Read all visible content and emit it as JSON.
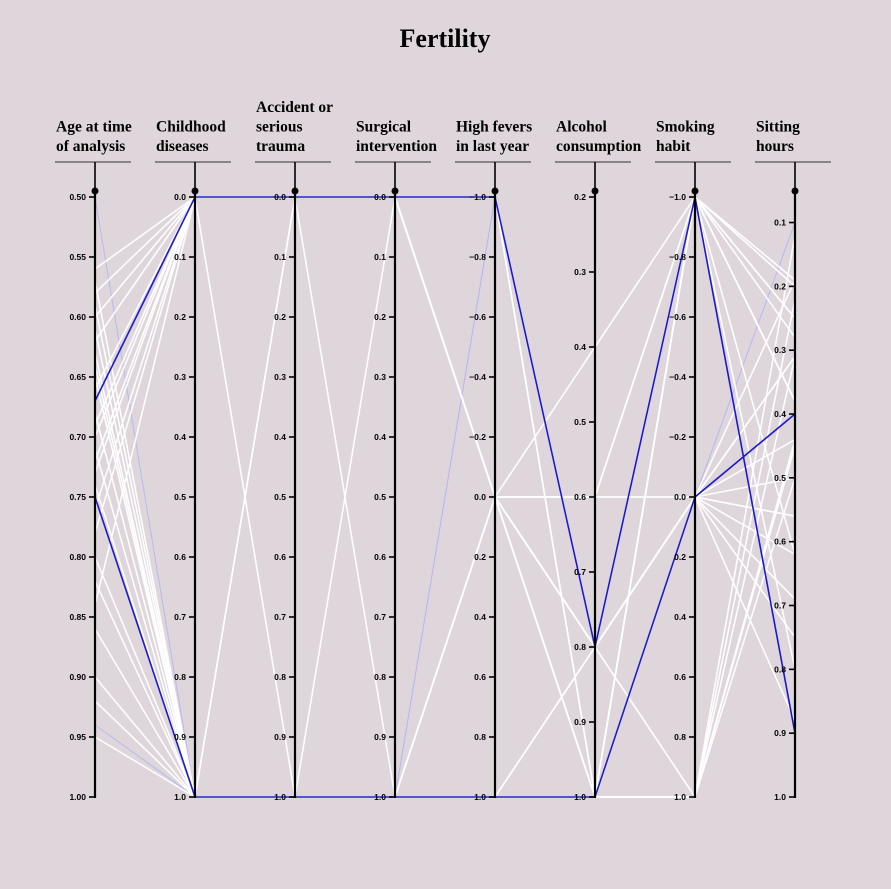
{
  "chart_data": {
    "type": "parallel-coordinates",
    "title": "Fertility",
    "axes": [
      {
        "key": "age",
        "label_lines": [
          "Age at time",
          "of analysis"
        ],
        "domain": [
          0.5,
          1.0
        ],
        "ticks": [
          0.5,
          0.55,
          0.6,
          0.65,
          0.7,
          0.75,
          0.8,
          0.85,
          0.9,
          0.95,
          1.0
        ],
        "tick_labels": [
          "0.50",
          "0.55",
          "0.60",
          "0.65",
          "0.70",
          "0.75",
          "0.80",
          "0.85",
          "0.90",
          "0.95",
          "1.00"
        ]
      },
      {
        "key": "childhood",
        "label_lines": [
          "Childhood",
          "diseases"
        ],
        "domain": [
          0,
          1
        ],
        "ticks": [
          0,
          0.1,
          0.2,
          0.3,
          0.4,
          0.5,
          0.6,
          0.7,
          0.8,
          0.9,
          1.0
        ],
        "tick_labels": [
          "0.0",
          "0.1",
          "0.2",
          "0.3",
          "0.4",
          "0.5",
          "0.6",
          "0.7",
          "0.8",
          "0.9",
          "1.0"
        ]
      },
      {
        "key": "accident",
        "label_lines": [
          "Accident or",
          "serious",
          "trauma"
        ],
        "domain": [
          0,
          1
        ],
        "ticks": [
          0,
          0.1,
          0.2,
          0.3,
          0.4,
          0.5,
          0.6,
          0.7,
          0.8,
          0.9,
          1.0
        ],
        "tick_labels": [
          "0.0",
          "0.1",
          "0.2",
          "0.3",
          "0.4",
          "0.5",
          "0.6",
          "0.7",
          "0.8",
          "0.9",
          "1.0"
        ]
      },
      {
        "key": "surgical",
        "label_lines": [
          "Surgical",
          "intervention"
        ],
        "domain": [
          0,
          1
        ],
        "ticks": [
          0,
          0.1,
          0.2,
          0.3,
          0.4,
          0.5,
          0.6,
          0.7,
          0.8,
          0.9,
          1.0
        ],
        "tick_labels": [
          "0.0",
          "0.1",
          "0.2",
          "0.3",
          "0.4",
          "0.5",
          "0.6",
          "0.7",
          "0.8",
          "0.9",
          "1.0"
        ]
      },
      {
        "key": "fevers",
        "label_lines": [
          "High fevers",
          "in last year"
        ],
        "domain": [
          -1,
          1
        ],
        "ticks": [
          -1,
          -0.8,
          -0.6,
          -0.4,
          -0.2,
          0,
          0.2,
          0.4,
          0.6,
          0.8,
          1.0
        ],
        "tick_labels": [
          "−1.0",
          "−0.8",
          "−0.6",
          "−0.4",
          "−0.2",
          "0.0",
          "0.2",
          "0.4",
          "0.6",
          "0.8",
          "1.0"
        ]
      },
      {
        "key": "alcohol",
        "label_lines": [
          "Alcohol",
          "consumption"
        ],
        "domain": [
          0.2,
          1.0
        ],
        "ticks": [
          0.2,
          0.3,
          0.4,
          0.5,
          0.6,
          0.7,
          0.8,
          0.9,
          1.0
        ],
        "tick_labels": [
          "0.2",
          "0.3",
          "0.4",
          "0.5",
          "0.6",
          "0.7",
          "0.8",
          "0.9",
          "1.0"
        ]
      },
      {
        "key": "smoking",
        "label_lines": [
          "Smoking",
          "habit"
        ],
        "domain": [
          -1,
          1
        ],
        "ticks": [
          -1,
          -0.8,
          -0.6,
          -0.4,
          -0.2,
          0,
          0.2,
          0.4,
          0.6,
          0.8,
          1.0
        ],
        "tick_labels": [
          "−1.0",
          "−0.8",
          "−0.6",
          "−0.4",
          "−0.2",
          "0.0",
          "0.2",
          "0.4",
          "0.6",
          "0.8",
          "1.0"
        ]
      },
      {
        "key": "sitting",
        "label_lines": [
          "Sitting",
          "hours"
        ],
        "domain": [
          0.06,
          1.0
        ],
        "ticks": [
          0.1,
          0.2,
          0.3,
          0.4,
          0.5,
          0.6,
          0.7,
          0.8,
          0.9,
          1.0
        ],
        "tick_labels": [
          "0.1",
          "0.2",
          "0.3",
          "0.4",
          "0.5",
          "0.6",
          "0.7",
          "0.8",
          "0.9",
          "1.0"
        ]
      }
    ],
    "series": [
      {
        "style": "highlight",
        "values": [
          0.67,
          0.0,
          0.0,
          0.0,
          -1.0,
          0.8,
          -1.0,
          0.9
        ]
      },
      {
        "style": "highlight",
        "values": [
          0.75,
          1.0,
          1.0,
          1.0,
          1.0,
          1.0,
          0.0,
          0.4
        ]
      },
      {
        "style": "background",
        "values": [
          0.56,
          0.0,
          0.0,
          0.0,
          -1.0,
          1.0,
          -1.0,
          0.25
        ]
      },
      {
        "style": "background",
        "values": [
          0.58,
          0.0,
          0.0,
          0.0,
          0.0,
          0.8,
          -1.0,
          0.38
        ]
      },
      {
        "style": "background",
        "values": [
          0.6,
          0.0,
          0.0,
          1.0,
          1.0,
          1.0,
          0.0,
          0.31
        ]
      },
      {
        "style": "background",
        "values": [
          0.62,
          0.0,
          0.0,
          0.0,
          0.0,
          1.0,
          -1.0,
          0.2
        ]
      },
      {
        "style": "background",
        "values": [
          0.64,
          1.0,
          1.0,
          1.0,
          1.0,
          1.0,
          1.0,
          0.12
        ]
      },
      {
        "style": "background",
        "values": [
          0.66,
          0.0,
          0.0,
          0.0,
          0.0,
          0.8,
          0.0,
          0.5
        ]
      },
      {
        "style": "background",
        "values": [
          0.68,
          1.0,
          1.0,
          1.0,
          0.0,
          0.6,
          -1.0,
          0.25
        ]
      },
      {
        "style": "background",
        "values": [
          0.69,
          0.0,
          0.0,
          0.0,
          -1.0,
          0.8,
          0.0,
          0.44
        ]
      },
      {
        "style": "background",
        "values": [
          0.7,
          0.0,
          1.0,
          0.0,
          0.0,
          1.0,
          1.0,
          0.31
        ]
      },
      {
        "style": "background",
        "values": [
          0.71,
          1.0,
          1.0,
          1.0,
          1.0,
          1.0,
          0.0,
          0.56
        ]
      },
      {
        "style": "background",
        "values": [
          0.72,
          0.0,
          0.0,
          0.0,
          0.0,
          0.4,
          -1.0,
          0.38
        ]
      },
      {
        "style": "background",
        "values": [
          0.73,
          0.0,
          0.0,
          0.0,
          0.0,
          0.6,
          0.0,
          0.19
        ]
      },
      {
        "style": "background",
        "values": [
          0.74,
          1.0,
          1.0,
          1.0,
          1.0,
          0.8,
          -1.0,
          0.62
        ]
      },
      {
        "style": "background",
        "values": [
          0.76,
          0.0,
          0.0,
          0.0,
          -1.0,
          1.0,
          1.0,
          0.44
        ]
      },
      {
        "style": "background",
        "values": [
          0.78,
          0.0,
          0.0,
          0.0,
          0.0,
          0.8,
          0.0,
          0.69
        ]
      },
      {
        "style": "background",
        "values": [
          0.8,
          1.0,
          1.0,
          1.0,
          1.0,
          1.0,
          -1.0,
          0.28
        ]
      },
      {
        "style": "background",
        "values": [
          0.82,
          1.0,
          1.0,
          1.0,
          0.0,
          0.8,
          1.0,
          0.5
        ]
      },
      {
        "style": "background",
        "values": [
          0.84,
          0.0,
          0.0,
          0.0,
          0.0,
          0.6,
          0.0,
          0.62
        ]
      },
      {
        "style": "background",
        "values": [
          0.86,
          1.0,
          1.0,
          1.0,
          1.0,
          1.0,
          -1.0,
          0.38
        ]
      },
      {
        "style": "background",
        "values": [
          0.9,
          1.0,
          1.0,
          1.0,
          0.0,
          0.8,
          0.0,
          0.75
        ]
      },
      {
        "style": "background",
        "values": [
          0.92,
          1.0,
          1.0,
          1.0,
          1.0,
          1.0,
          1.0,
          0.22
        ]
      },
      {
        "style": "background",
        "values": [
          0.95,
          1.0,
          0.0,
          0.0,
          0.0,
          0.8,
          0.0,
          0.31
        ]
      },
      {
        "style": "background",
        "values": [
          0.65,
          1.0,
          0.0,
          0.0,
          0.0,
          1.0,
          1.0,
          0.45
        ]
      },
      {
        "style": "background",
        "values": [
          0.63,
          1.0,
          1.0,
          1.0,
          1.0,
          0.8,
          0.0,
          0.56
        ]
      },
      {
        "style": "background",
        "values": [
          0.57,
          1.0,
          1.0,
          1.0,
          1.0,
          1.0,
          -1.0,
          0.19
        ]
      },
      {
        "style": "background",
        "values": [
          0.61,
          1.0,
          1.0,
          1.0,
          0.0,
          0.6,
          -1.0,
          0.8
        ]
      },
      {
        "style": "background",
        "values": [
          0.59,
          1.0,
          1.0,
          1.0,
          1.0,
          1.0,
          0.0,
          0.88
        ]
      },
      {
        "style": "faint",
        "values": [
          0.5,
          1.0,
          0.0,
          1.0,
          -1.0,
          0.8,
          0.0,
          0.1
        ]
      },
      {
        "style": "faint",
        "values": [
          0.94,
          1.0,
          0.0,
          1.0,
          -1.0,
          1.0,
          1.0,
          0.5
        ]
      }
    ],
    "colors": {
      "background": "#ded6db",
      "line": "#ffffff",
      "highlight": "#1a1acc",
      "faint": "#b8b8f2"
    }
  }
}
